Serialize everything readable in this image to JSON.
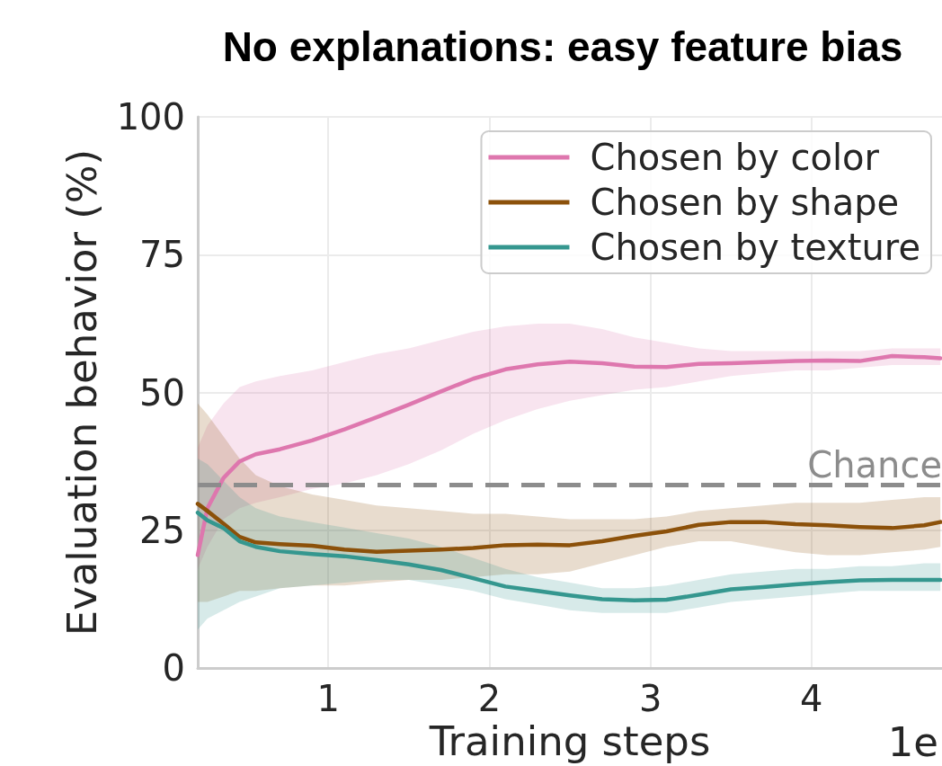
{
  "chart_data": {
    "type": "line",
    "title": "No explanations: easy feature bias",
    "xlabel": "Training steps",
    "ylabel": "Evaluation behavior (%)",
    "x": [
      0.19,
      0.25,
      0.35,
      0.45,
      0.55,
      0.7,
      0.9,
      1.1,
      1.3,
      1.5,
      1.7,
      1.9,
      2.1,
      2.3,
      2.5,
      2.7,
      2.9,
      3.1,
      3.3,
      3.5,
      3.7,
      3.9,
      4.1,
      4.3,
      4.5,
      4.7,
      4.8
    ],
    "series": [
      {
        "name": "Chosen by color",
        "color": "#de77ae",
        "values": [
          20.5,
          29,
          34.5,
          37.5,
          38.8,
          39.7,
          41.3,
          43.3,
          45.5,
          47.8,
          50.2,
          52.5,
          54.2,
          55.1,
          55.6,
          55.3,
          54.7,
          54.6,
          55.2,
          55.3,
          55.5,
          55.7,
          55.8,
          55.7,
          56.6,
          56.4,
          56.2
        ],
        "lower": [
          18,
          22,
          27,
          29,
          30,
          31,
          32.5,
          33.5,
          35,
          37,
          39.5,
          42.5,
          45,
          47,
          48.5,
          49.5,
          50.5,
          51,
          52,
          53,
          53.5,
          54,
          54,
          54.5,
          55,
          55,
          55
        ],
        "upper": [
          40,
          44,
          48,
          51,
          52,
          53,
          54,
          55.5,
          57,
          58,
          59.5,
          61,
          62,
          62.5,
          62.5,
          61.5,
          60,
          59,
          58,
          57.5,
          57.5,
          57.5,
          57.5,
          57.5,
          58,
          58,
          58
        ]
      },
      {
        "name": "Chosen by shape",
        "color": "#8c510a",
        "values": [
          29.8,
          28.5,
          26.2,
          23.8,
          22.8,
          22.5,
          22.2,
          21.5,
          21.1,
          21.3,
          21.5,
          21.8,
          22.3,
          22.4,
          22.3,
          23,
          24,
          24.8,
          26,
          26.5,
          26.5,
          26.1,
          25.9,
          25.6,
          25.4,
          25.9,
          26.5
        ],
        "lower": [
          12,
          12,
          13,
          14,
          14,
          14.5,
          15,
          15,
          15.5,
          16,
          16,
          16.5,
          17,
          17,
          17.5,
          19,
          20.5,
          22,
          23,
          23,
          22,
          21,
          20.5,
          20.5,
          21,
          21.5,
          22
        ],
        "upper": [
          48,
          46,
          42,
          38,
          35,
          33,
          31.5,
          30.5,
          29.5,
          29,
          28.5,
          28,
          28,
          27.5,
          27,
          27,
          27,
          27.5,
          28.5,
          29,
          29.5,
          30,
          30,
          30,
          30.5,
          31,
          31
        ]
      },
      {
        "name": "Chosen by texture",
        "color": "#35978f",
        "values": [
          28.2,
          26.8,
          25.4,
          23,
          22,
          21.2,
          20.7,
          20.3,
          19.6,
          18.8,
          17.8,
          16.3,
          14.8,
          14,
          13.2,
          12.5,
          12.3,
          12.4,
          13.3,
          14.3,
          14.7,
          15.2,
          15.6,
          15.9,
          16,
          16,
          16
        ],
        "lower": [
          7,
          9,
          10.5,
          12,
          13,
          14.5,
          15,
          15.5,
          16,
          16,
          15,
          14,
          12.5,
          11.5,
          10.5,
          10,
          10,
          10,
          11,
          12,
          12.5,
          13,
          13.5,
          14,
          14,
          14,
          14
        ],
        "upper": [
          38,
          37,
          34,
          31,
          29,
          27.5,
          26.5,
          25.5,
          24.5,
          23.5,
          22,
          20,
          18,
          16.5,
          15.5,
          14.5,
          14.5,
          15,
          16,
          17,
          17.5,
          18,
          18,
          18.5,
          18.5,
          19,
          19
        ]
      }
    ],
    "xlim": [
      0.19,
      4.81
    ],
    "ylim": [
      0,
      100
    ],
    "xticks": [
      1,
      2,
      3,
      4
    ],
    "yticks": [
      0,
      25,
      50,
      75,
      100
    ],
    "grid": true,
    "legend": "top right",
    "marker": "none",
    "ref_lines": [
      {
        "axis": "y",
        "value": 33.3,
        "label": "Chance",
        "color": "#8c8c8c",
        "line_style": "dashed"
      }
    ],
    "annotations": [
      "1e"
    ]
  }
}
